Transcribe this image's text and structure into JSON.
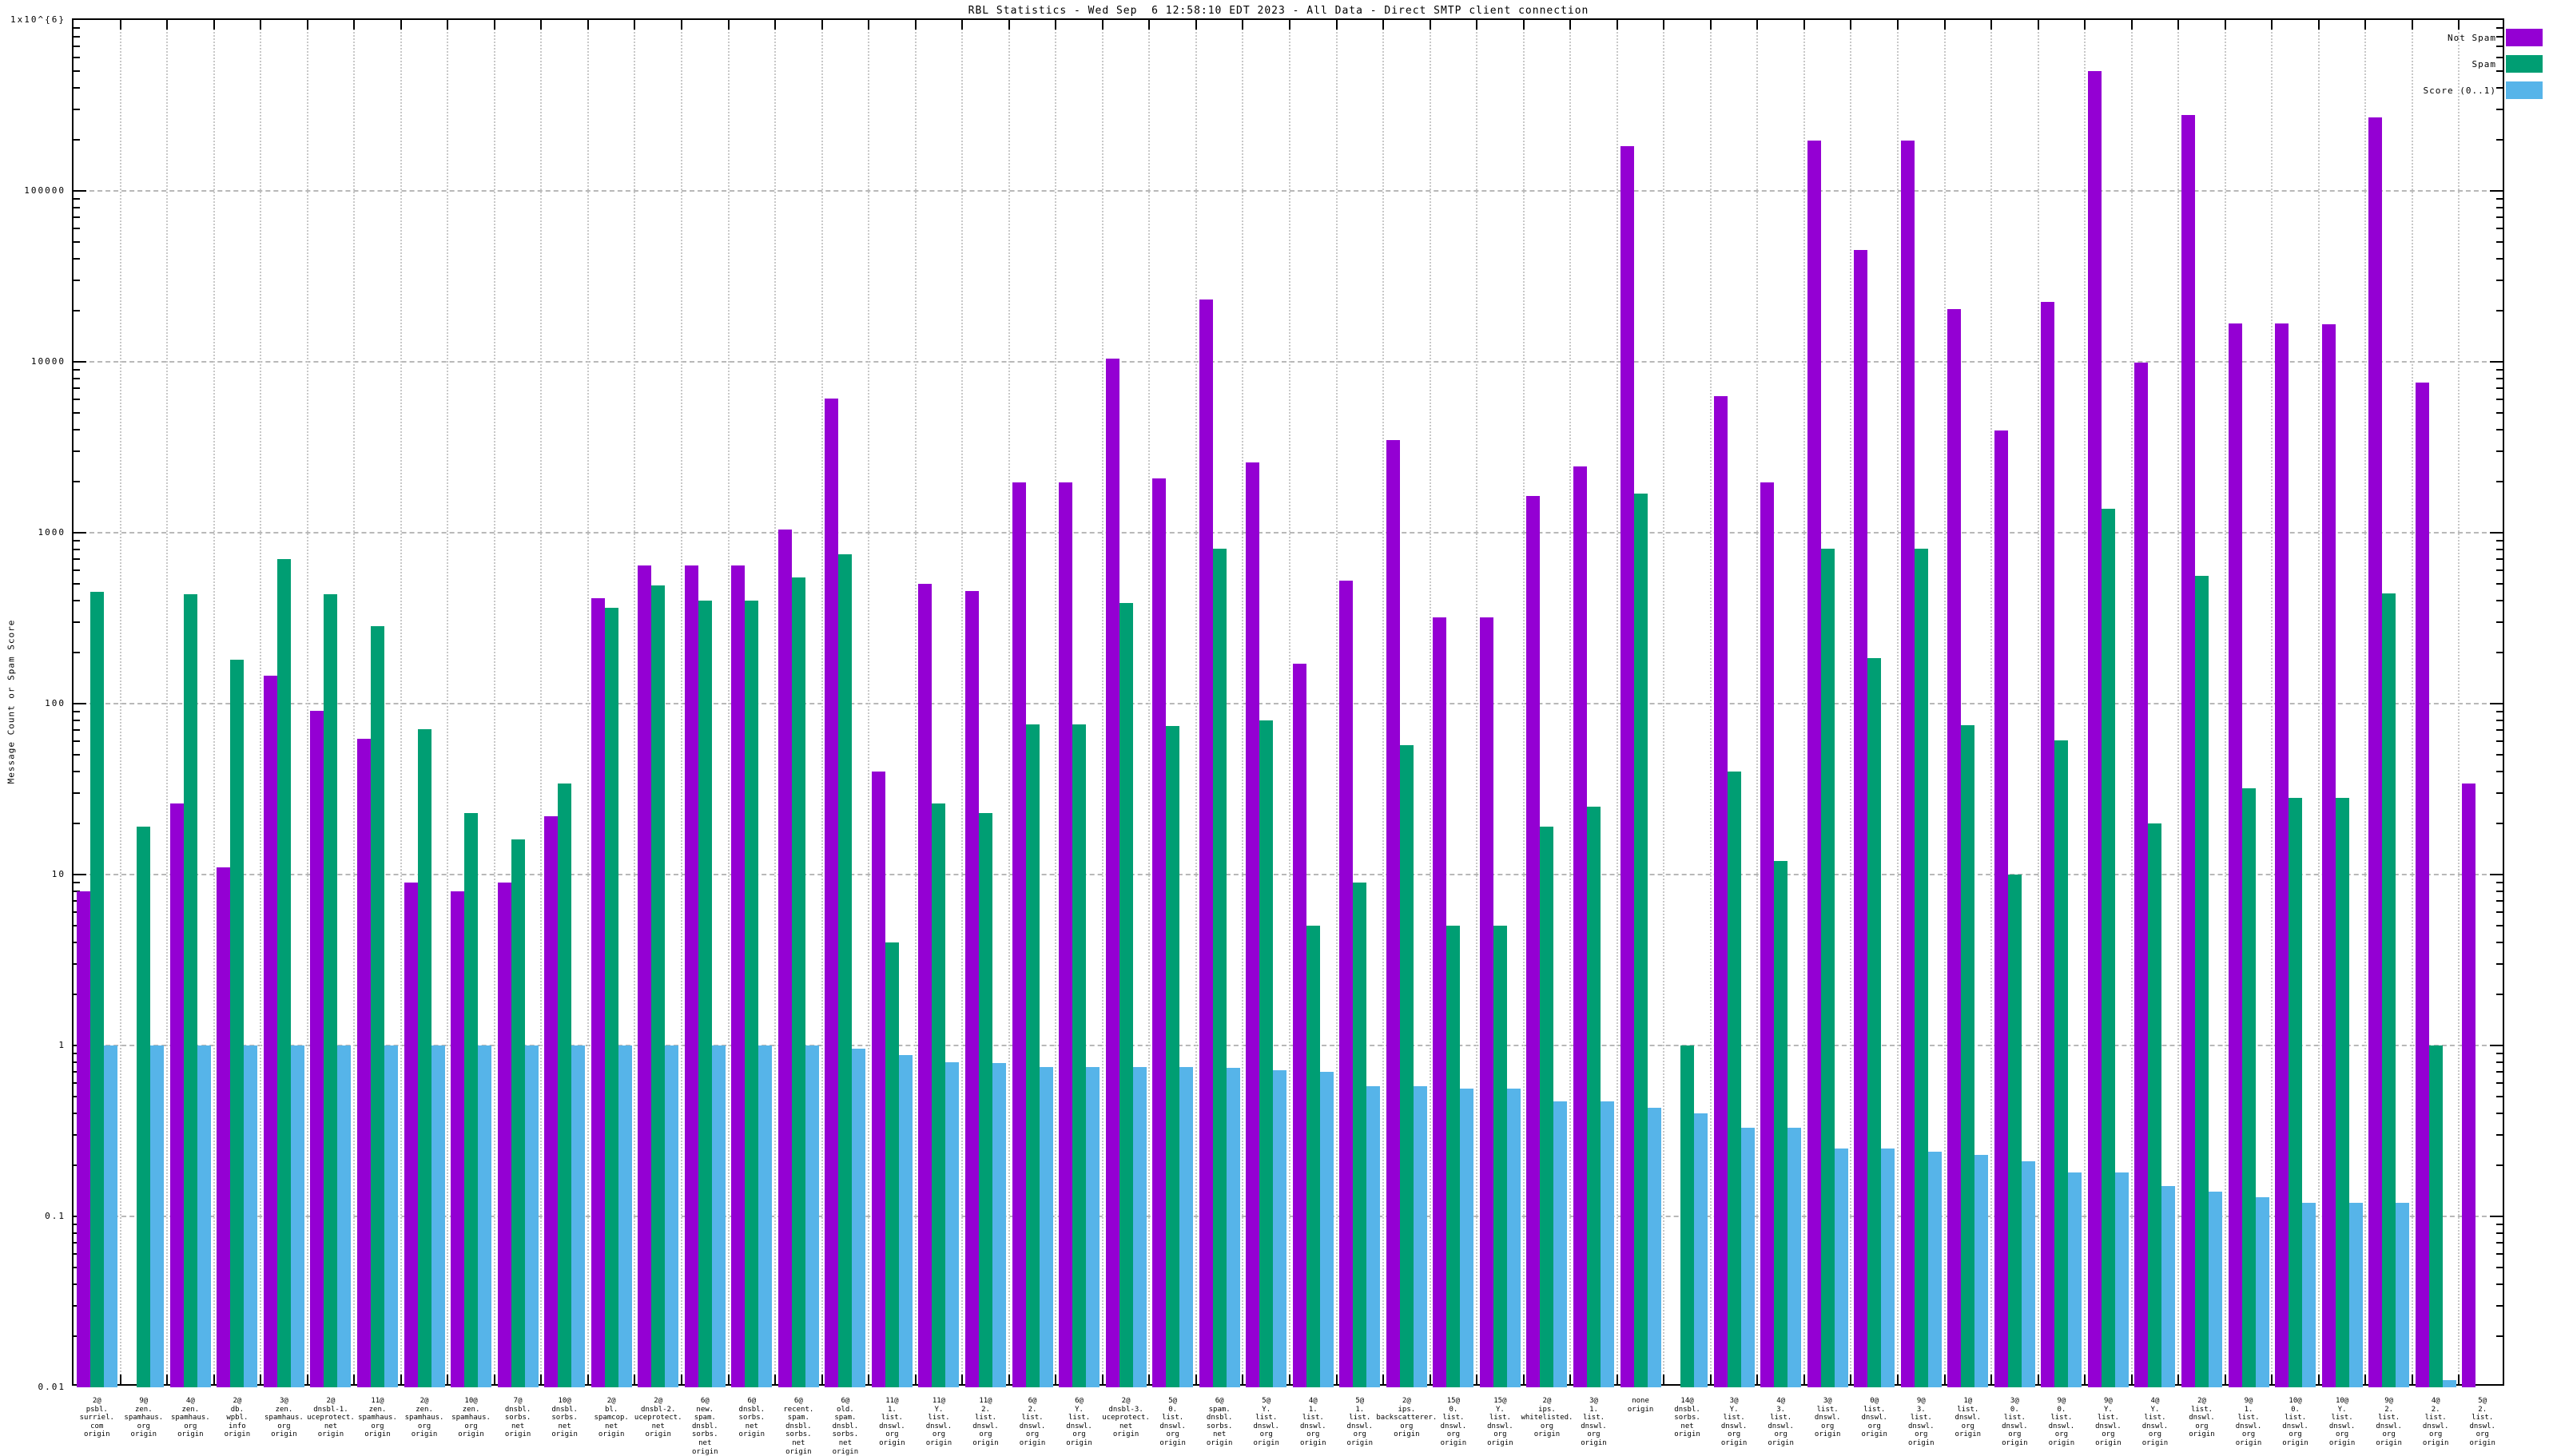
{
  "chart_data": {
    "type": "bar",
    "title": "RBL Statistics - Wed Sep  6 12:58:10 EDT 2023 - All Data - Direct SMTP client connection",
    "ylabel": "Message Count or Spam Score",
    "xlabel": "",
    "y_scale": "log",
    "ylim": [
      0.01,
      1000000
    ],
    "ytick_labels": [
      "0.01",
      "0.1",
      "1",
      "10",
      "100",
      "1000",
      "10000",
      "100000",
      "1x10^{6}"
    ],
    "grid": true,
    "legend_position": "top-right",
    "categories": [
      [
        "2@",
        "psbl.",
        "surriel.",
        "com",
        "origin"
      ],
      [
        "9@",
        "zen.",
        "spamhaus.",
        "org",
        "origin"
      ],
      [
        "4@",
        "zen.",
        "spamhaus.",
        "org",
        "origin"
      ],
      [
        "2@",
        "db.",
        "wpbl.",
        "info",
        "origin"
      ],
      [
        "3@",
        "zen.",
        "spamhaus.",
        "org",
        "origin"
      ],
      [
        "2@",
        "dnsbl-1.",
        "uceprotect.",
        "net",
        "origin"
      ],
      [
        "11@",
        "zen.",
        "spamhaus.",
        "org",
        "origin"
      ],
      [
        "2@",
        "zen.",
        "spamhaus.",
        "org",
        "origin"
      ],
      [
        "10@",
        "zen.",
        "spamhaus.",
        "org",
        "origin"
      ],
      [
        "7@",
        "dnsbl.",
        "sorbs.",
        "net",
        "origin"
      ],
      [
        "10@",
        "dnsbl.",
        "sorbs.",
        "net",
        "origin"
      ],
      [
        "2@",
        "bl.",
        "spamcop.",
        "net",
        "origin"
      ],
      [
        "2@",
        "dnsbl-2.",
        "uceprotect.",
        "net",
        "origin"
      ],
      [
        "6@",
        "new.",
        "spam.",
        "dnsbl.",
        "sorbs.",
        "net",
        "origin"
      ],
      [
        "6@",
        "dnsbl.",
        "sorbs.",
        "net",
        "origin"
      ],
      [
        "6@",
        "recent.",
        "spam.",
        "dnsbl.",
        "sorbs.",
        "net",
        "origin"
      ],
      [
        "6@",
        "old.",
        "spam.",
        "dnsbl.",
        "sorbs.",
        "net",
        "origin"
      ],
      [
        "11@",
        "1.",
        "list.",
        "dnswl.",
        "org",
        "origin"
      ],
      [
        "11@",
        "Y.",
        "list.",
        "dnswl.",
        "org",
        "origin"
      ],
      [
        "11@",
        "2.",
        "list.",
        "dnswl.",
        "org",
        "origin"
      ],
      [
        "6@",
        "2.",
        "list.",
        "dnswl.",
        "org",
        "origin"
      ],
      [
        "6@",
        "Y.",
        "list.",
        "dnswl.",
        "org",
        "origin"
      ],
      [
        "2@",
        "dnsbl-3.",
        "uceprotect.",
        "net",
        "origin"
      ],
      [
        "5@",
        "0.",
        "list.",
        "dnswl.",
        "org",
        "origin"
      ],
      [
        "6@",
        "spam.",
        "dnsbl.",
        "sorbs.",
        "net",
        "origin"
      ],
      [
        "5@",
        "Y.",
        "list.",
        "dnswl.",
        "org",
        "origin"
      ],
      [
        "4@",
        "1.",
        "list.",
        "dnswl.",
        "org",
        "origin"
      ],
      [
        "5@",
        "1.",
        "list.",
        "dnswl.",
        "org",
        "origin"
      ],
      [
        "2@",
        "ips.",
        "backscatterer.",
        "org",
        "origin"
      ],
      [
        "15@",
        "0.",
        "list.",
        "dnswl.",
        "org",
        "origin"
      ],
      [
        "15@",
        "Y.",
        "list.",
        "dnswl.",
        "org",
        "origin"
      ],
      [
        "2@",
        "ips.",
        "whitelisted.",
        "org",
        "origin"
      ],
      [
        "3@",
        "1.",
        "list.",
        "dnswl.",
        "org",
        "origin"
      ],
      [
        "none",
        "origin"
      ],
      [
        "14@",
        "dnsbl.",
        "sorbs.",
        "net",
        "origin"
      ],
      [
        "3@",
        "Y.",
        "list.",
        "dnswl.",
        "org",
        "origin"
      ],
      [
        "4@",
        "3.",
        "list.",
        "dnswl.",
        "org",
        "origin"
      ],
      [
        "3@",
        "list.",
        "dnswl.",
        "org",
        "origin"
      ],
      [
        "0@",
        "list.",
        "dnswl.",
        "org",
        "origin"
      ],
      [
        "9@",
        "3.",
        "list.",
        "dnswl.",
        "org",
        "origin"
      ],
      [
        "1@",
        "list.",
        "dnswl.",
        "org",
        "origin"
      ],
      [
        "3@",
        "0.",
        "list.",
        "dnswl.",
        "org",
        "origin"
      ],
      [
        "9@",
        "0.",
        "list.",
        "dnswl.",
        "org",
        "origin"
      ],
      [
        "9@",
        "Y.",
        "list.",
        "dnswl.",
        "org",
        "origin"
      ],
      [
        "4@",
        "Y.",
        "list.",
        "dnswl.",
        "org",
        "origin"
      ],
      [
        "2@",
        "list.",
        "dnswl.",
        "org",
        "origin"
      ],
      [
        "9@",
        "1.",
        "list.",
        "dnswl.",
        "org",
        "origin"
      ],
      [
        "10@",
        "0.",
        "list.",
        "dnswl.",
        "org",
        "origin"
      ],
      [
        "10@",
        "Y.",
        "list.",
        "dnswl.",
        "org",
        "origin"
      ],
      [
        "9@",
        "2.",
        "list.",
        "dnswl.",
        "org",
        "origin"
      ],
      [
        "4@",
        "2.",
        "list.",
        "dnswl.",
        "org",
        "origin"
      ],
      [
        "5@",
        "2.",
        "list.",
        "dnswl.",
        "org",
        "origin"
      ]
    ],
    "series": [
      {
        "name": "Not Spam",
        "color": "#9400d3",
        "values": [
          8,
          null,
          26,
          11,
          146,
          91,
          62,
          9,
          8,
          9,
          22,
          416,
          640,
          640,
          640,
          1040,
          6100,
          40,
          500,
          455,
          1960,
          1960,
          10400,
          2070,
          23200,
          2580,
          172,
          525,
          3490,
          318,
          318,
          1640,
          2430,
          183000,
          null,
          6280,
          1960,
          196000,
          45000,
          196000,
          20400,
          3980,
          22400,
          500000,
          9900,
          278000,
          16800,
          16700,
          16600,
          270000,
          7600,
          34
        ]
      },
      {
        "name": "Spam",
        "color": "#009e73",
        "values": [
          450,
          19,
          435,
          180,
          700,
          437,
          284,
          71,
          23,
          16,
          34,
          362,
          491,
          402,
          402,
          549,
          745,
          4,
          26,
          23,
          76,
          76,
          387,
          74,
          810,
          80,
          5,
          9,
          57,
          5,
          5,
          19,
          25,
          1700,
          1,
          40,
          12,
          810,
          185,
          810,
          75,
          10,
          61,
          1380,
          20,
          560,
          32,
          28,
          28,
          440,
          1,
          null
        ]
      },
      {
        "name": "Score (0..1)",
        "color": "#56b4e9",
        "values": [
          1,
          1,
          1,
          1,
          1,
          1,
          1,
          1,
          1,
          1,
          1,
          1,
          1,
          1,
          1,
          1,
          0.96,
          0.88,
          0.8,
          0.79,
          0.75,
          0.75,
          0.75,
          0.75,
          0.74,
          0.72,
          0.7,
          0.58,
          0.58,
          0.56,
          0.56,
          0.47,
          0.47,
          0.43,
          0.4,
          0.33,
          0.33,
          0.25,
          0.25,
          0.24,
          0.23,
          0.21,
          0.18,
          0.18,
          0.15,
          0.14,
          0.13,
          0.12,
          0.12,
          0.12,
          0.011,
          null
        ]
      }
    ]
  }
}
